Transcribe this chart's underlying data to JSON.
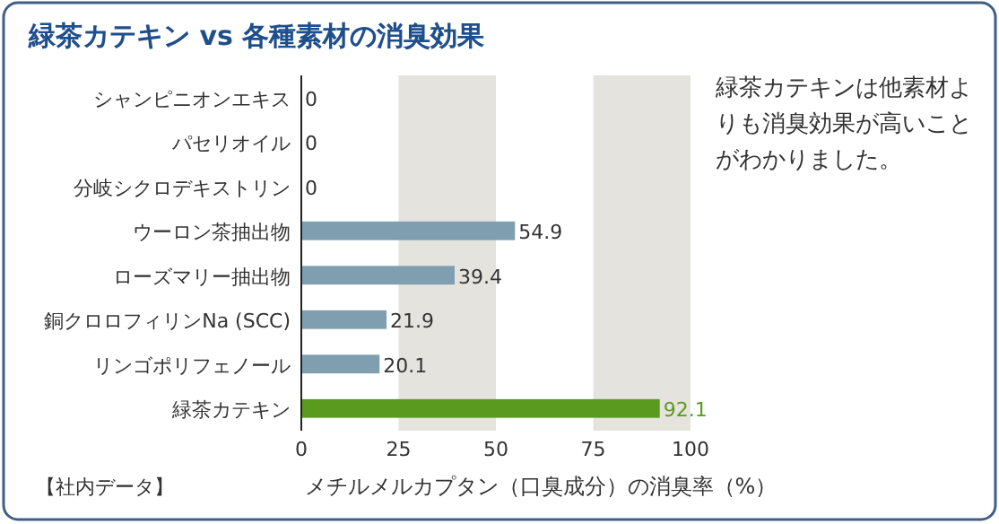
{
  "chart_data": {
    "type": "bar",
    "orientation": "horizontal",
    "title": "緑茶カテキン vs 各種素材の消臭効果",
    "categories": [
      "シャンピニオンエキス",
      "パセリオイル",
      "分岐シクロデキストリン",
      "ウーロン茶抽出物",
      "ローズマリー抽出物",
      "銅クロロフィリンNa (SCC)",
      "リンゴポリフェノール",
      "緑茶カテキン"
    ],
    "values": [
      0,
      0,
      0,
      54.9,
      39.4,
      21.9,
      20.1,
      92.1
    ],
    "colors": [
      "#7f9fb1",
      "#7f9fb1",
      "#7f9fb1",
      "#7f9fb1",
      "#7f9fb1",
      "#7f9fb1",
      "#7f9fb1",
      "#5a9a1e"
    ],
    "data_labels": true,
    "xlim": [
      0,
      100
    ],
    "xticks": [
      0,
      25,
      50,
      75,
      100
    ],
    "xlabel": "メチルメルカプタン（口臭成分）の消臭率（%）",
    "bands": [
      {
        "axis": "x",
        "from": 25,
        "to": 50,
        "color": "#e4e3dd"
      },
      {
        "axis": "x",
        "from": 75,
        "to": 100,
        "color": "#e4e3dd"
      }
    ],
    "annotations": [
      "緑茶カテキンは他素材よりも消臭効果が高いことがわかりました。",
      "【社内データ】"
    ]
  }
}
